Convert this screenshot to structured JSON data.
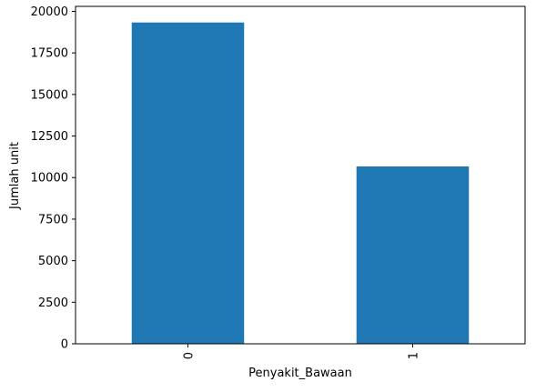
{
  "chart_data": {
    "type": "bar",
    "categories": [
      "0",
      "1"
    ],
    "values": [
      19330,
      10670
    ],
    "title": "",
    "xlabel": "Penyakit_Bawaan",
    "ylabel": "Jumlah unit",
    "ylim": [
      0,
      20300
    ],
    "yticks": [
      0,
      2500,
      5000,
      7500,
      10000,
      12500,
      15000,
      17500,
      20000
    ],
    "ytick_labels": [
      "0",
      "2500",
      "5000",
      "7500",
      "10000",
      "12500",
      "15000",
      "17500",
      "20000"
    ],
    "grid": false,
    "legend": "none",
    "bar_color": "#1f77b4",
    "x_tick_rotation": "vertical"
  }
}
